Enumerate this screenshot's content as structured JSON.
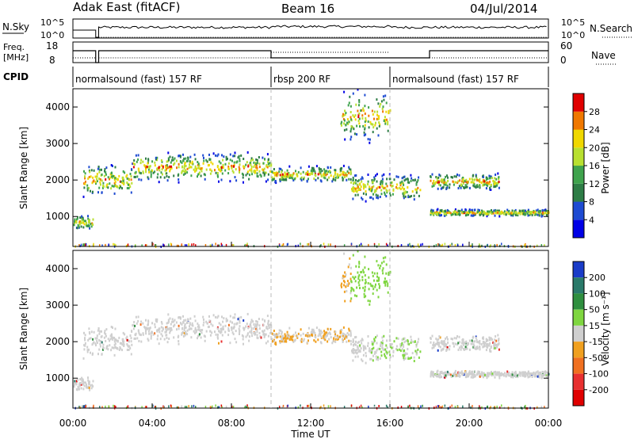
{
  "header": {
    "radar": "Adak East (fitACF)",
    "beam": "Beam 16",
    "date": "04/Jul/2014"
  },
  "strip_panels": {
    "nsky": {
      "left_label": "N.Sky",
      "right_label": "N.Search",
      "ticks_left": [
        "10^5",
        "10^0"
      ],
      "ticks_right": [
        "10^5",
        "10^0"
      ]
    },
    "freq": {
      "left_label_1": "Freq.",
      "left_label_2": "[MHz]",
      "right_label": "Nave",
      "ticks_left": [
        "18",
        "8"
      ],
      "ticks_right": [
        "60",
        "0"
      ]
    },
    "cpid": {
      "label": "CPID",
      "segments": [
        {
          "label": "normalsound (fast) 157 RF",
          "start_hour": 0,
          "end_hour": 10
        },
        {
          "label": "rbsp 200 RF",
          "start_hour": 10,
          "end_hour": 16
        },
        {
          "label": "normalsound (fast) 157 RF",
          "start_hour": 16,
          "end_hour": 24
        }
      ]
    }
  },
  "chart_data": [
    {
      "type": "heatmap",
      "panel": "power",
      "ylabel": "Slant Range [km]",
      "xlabel": "",
      "xlim_hours": [
        0,
        24
      ],
      "ylim_km": [
        180,
        4500
      ],
      "y_ticks": [
        "1000",
        "2000",
        "3000",
        "4000"
      ],
      "colorbar": {
        "label": "Power [dB]",
        "ticks": [
          "4",
          "8",
          "12",
          "16",
          "20",
          "24",
          "28"
        ],
        "colors": [
          "#0000e6",
          "#1e4bd2",
          "#2e7d46",
          "#3fa34d",
          "#b8e030",
          "#f0d800",
          "#f07800",
          "#e00000"
        ]
      },
      "echo_bands": [
        {
          "t0": 0.0,
          "t1": 1.0,
          "r0": 620,
          "r1": 1050
        },
        {
          "t0": 0.5,
          "t1": 3.0,
          "r0": 1500,
          "r1": 2500
        },
        {
          "t0": 3.0,
          "t1": 10.0,
          "r0": 1900,
          "r1": 2800
        },
        {
          "t0": 10.0,
          "t1": 14.0,
          "r0": 1900,
          "r1": 2400
        },
        {
          "t0": 14.0,
          "t1": 17.5,
          "r0": 1400,
          "r1": 2200
        },
        {
          "t0": 18.0,
          "t1": 21.5,
          "r0": 1700,
          "r1": 2200
        },
        {
          "t0": 13.5,
          "t1": 16.0,
          "r0": 3000,
          "r1": 4500
        },
        {
          "t0": 18.0,
          "t1": 24.0,
          "r0": 1000,
          "r1": 1200
        }
      ]
    },
    {
      "type": "heatmap",
      "panel": "velocity",
      "ylabel": "Slant Range [km]",
      "xlabel": "Time UT",
      "xlim_hours": [
        0,
        24
      ],
      "ylim_km": [
        180,
        4500
      ],
      "x_ticks": [
        "00:00",
        "04:00",
        "08:00",
        "12:00",
        "16:00",
        "20:00",
        "00:00"
      ],
      "y_ticks": [
        "1000",
        "2000",
        "3000",
        "4000"
      ],
      "colorbar": {
        "label": "Velocity [m s⁻¹]",
        "ticks": [
          "200",
          "100",
          "50",
          "15",
          "-15",
          "-50",
          "-100",
          "-200"
        ],
        "colors": [
          "#1a3cc8",
          "#2a7a6a",
          "#2f8f3f",
          "#7fd640",
          "#cfcfcf",
          "#f0a020",
          "#f07020",
          "#e83030",
          "#e00000"
        ]
      }
    }
  ]
}
